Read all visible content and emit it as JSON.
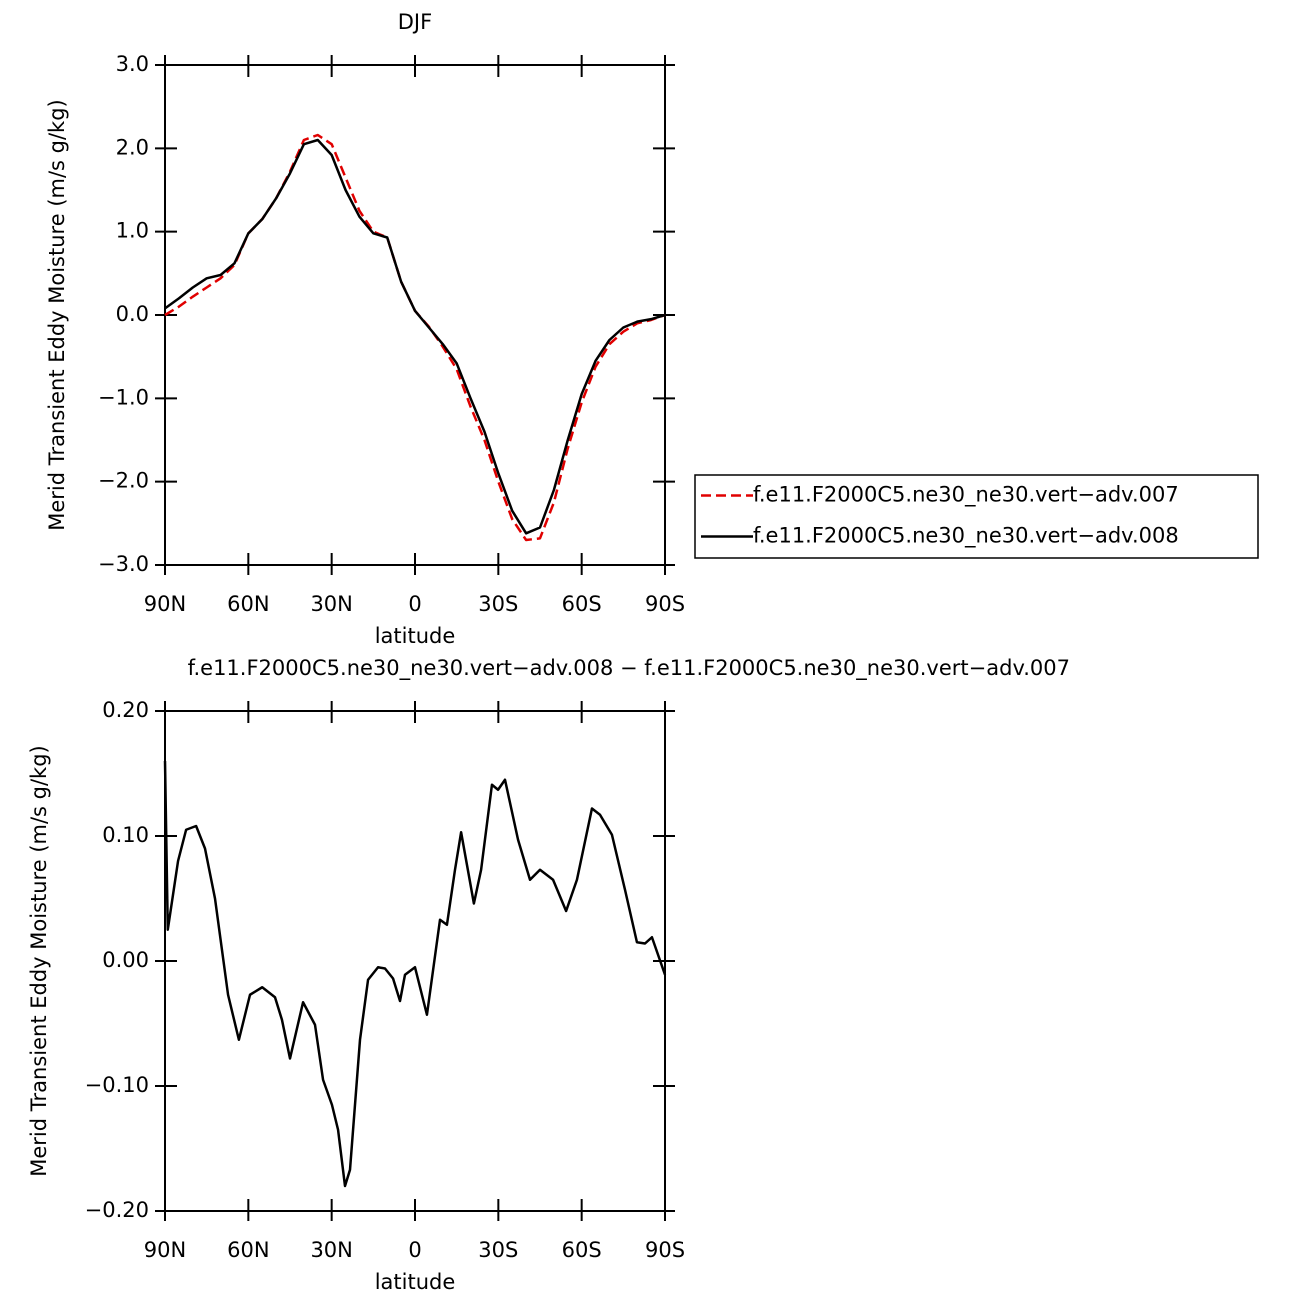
{
  "chart_data": [
    {
      "type": "line",
      "title": "DJF",
      "xlabel": "latitude",
      "ylabel": "Merid Transient Eddy Moisture (m/s g/kg)",
      "xlim": [
        90,
        -90
      ],
      "xticks": [
        {
          "value": 90,
          "label": "90N"
        },
        {
          "value": 60,
          "label": "60N"
        },
        {
          "value": 30,
          "label": "30N"
        },
        0,
        {
          "value": -30,
          "label": "30S"
        },
        {
          "value": -60,
          "label": "60S"
        },
        {
          "value": -90,
          "label": "90S"
        }
      ],
      "ylim": [
        -3.0,
        3.0
      ],
      "yticks": [
        {
          "value": 3.0,
          "label": "3.0"
        },
        {
          "value": 2.0,
          "label": "2.0"
        },
        {
          "value": 1.0,
          "label": "1.0"
        },
        {
          "value": 0,
          "label": "0.0"
        },
        {
          "value": -1.0,
          "label": "−1.0"
        },
        {
          "value": -2.0,
          "label": "−2.0"
        },
        {
          "value": -3.0,
          "label": "−3.0"
        }
      ],
      "legend": "right",
      "x": [
        90,
        85,
        80,
        75,
        70,
        65,
        60,
        55,
        50,
        45,
        40,
        35,
        30,
        25,
        20,
        15,
        10,
        5,
        0,
        -5,
        -10,
        -15,
        -20,
        -25,
        -30,
        -35,
        -40,
        -45,
        -50,
        -55,
        -60,
        -65,
        -70,
        -75,
        -80,
        -85,
        -90
      ],
      "series": [
        {
          "name": "f.e11.F2000C5.ne30_ne30.vert−adv.007",
          "color": "#e00000",
          "dashed": true,
          "values": [
            0.0,
            0.1,
            0.22,
            0.33,
            0.44,
            0.6,
            0.98,
            1.15,
            1.4,
            1.72,
            2.1,
            2.16,
            2.05,
            1.65,
            1.25,
            1.0,
            0.93,
            0.4,
            0.05,
            -0.14,
            -0.38,
            -0.65,
            -1.1,
            -1.5,
            -2.0,
            -2.45,
            -2.7,
            -2.68,
            -2.25,
            -1.6,
            -1.05,
            -0.62,
            -0.35,
            -0.2,
            -0.1,
            -0.06,
            0.0
          ]
        },
        {
          "name": "f.e11.F2000C5.ne30_ne30.vert−adv.008",
          "color": "#000000",
          "dashed": false,
          "values": [
            0.08,
            0.2,
            0.33,
            0.44,
            0.48,
            0.62,
            0.98,
            1.15,
            1.4,
            1.7,
            2.05,
            2.1,
            1.92,
            1.5,
            1.18,
            0.98,
            0.93,
            0.4,
            0.05,
            -0.15,
            -0.35,
            -0.58,
            -1.0,
            -1.4,
            -1.9,
            -2.35,
            -2.62,
            -2.55,
            -2.1,
            -1.5,
            -0.95,
            -0.55,
            -0.3,
            -0.15,
            -0.08,
            -0.05,
            0.0
          ]
        }
      ]
    },
    {
      "type": "line",
      "title": "f.e11.F2000C5.ne30_ne30.vert−adv.008 − f.e11.F2000C5.ne30_ne30.vert−adv.007",
      "xlabel": "latitude",
      "ylabel": "Merid Transient Eddy Moisture (m/s g/kg)",
      "xlim": [
        90,
        -90
      ],
      "xticks": [
        {
          "value": 90,
          "label": "90N"
        },
        {
          "value": 60,
          "label": "60N"
        },
        {
          "value": 30,
          "label": "30N"
        },
        0,
        {
          "value": -30,
          "label": "30S"
        },
        {
          "value": -60,
          "label": "60S"
        },
        {
          "value": -90,
          "label": "90S"
        }
      ],
      "ylim": [
        -0.2,
        0.2
      ],
      "yticks": [
        {
          "value": 0.2,
          "label": "0.20"
        },
        {
          "value": 0.1,
          "label": "0.10"
        },
        {
          "value": 0,
          "label": "0.00"
        },
        {
          "value": -0.1,
          "label": "−0.10"
        },
        {
          "value": -0.2,
          "label": "−0.20"
        }
      ],
      "x": [
        90,
        89,
        85.3,
        82.4,
        78.8,
        75.6,
        72,
        67.3,
        63.4,
        59.4,
        55,
        50.4,
        47.9,
        45,
        40.3,
        36,
        33.1,
        29.9,
        27.7,
        25.2,
        23.4,
        19.8,
        16.9,
        13.3,
        10.8,
        7.9,
        5.4,
        3.6,
        0,
        -4.3,
        -9,
        -11.5,
        -14.4,
        -16.6,
        -18.7,
        -21.2,
        -23.8,
        -27.7,
        -29.9,
        -32.4,
        -37.1,
        -41.4,
        -45,
        -49.7,
        -54.4,
        -58.3,
        -63.7,
        -66.6,
        -70.9,
        -75.6,
        -79.9,
        -82.8,
        -85.3,
        -90
      ],
      "series": [
        {
          "color": "#000000",
          "dashed": false,
          "values": [
            0.16,
            0.025,
            0.08,
            0.105,
            0.108,
            0.09,
            0.05,
            -0.027,
            -0.063,
            -0.027,
            -0.021,
            -0.029,
            -0.047,
            -0.078,
            -0.033,
            -0.051,
            -0.095,
            -0.115,
            -0.135,
            -0.18,
            -0.167,
            -0.063,
            -0.015,
            -0.005,
            -0.006,
            -0.014,
            -0.032,
            -0.011,
            -0.005,
            -0.043,
            0.033,
            0.029,
            0.073,
            0.103,
            0.077,
            0.046,
            0.073,
            0.141,
            0.137,
            0.145,
            0.097,
            0.065,
            0.073,
            0.065,
            0.04,
            0.065,
            0.122,
            0.117,
            0.101,
            0.057,
            0.015,
            0.014,
            0.019,
            -0.011
          ]
        }
      ]
    }
  ]
}
